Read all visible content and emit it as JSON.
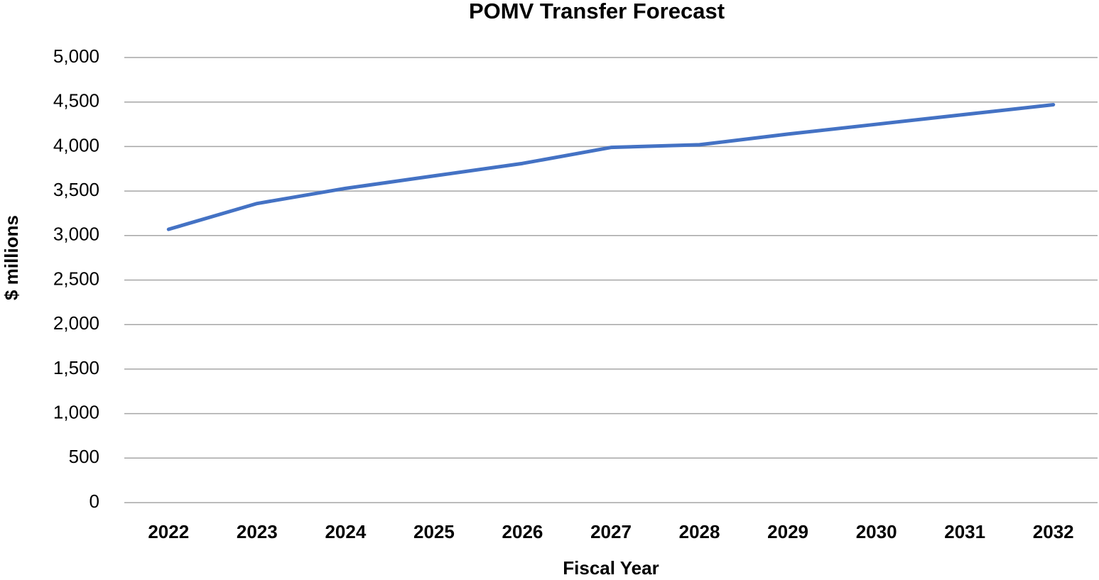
{
  "chart_data": {
    "type": "line",
    "title": "POMV Transfer Forecast",
    "x_label": "Fiscal Year",
    "y_label": "$ millions",
    "categories": [
      "2022",
      "2023",
      "2024",
      "2025",
      "2026",
      "2027",
      "2028",
      "2029",
      "2030",
      "2031",
      "2032"
    ],
    "values": [
      3070,
      3360,
      3530,
      3670,
      3810,
      3990,
      4020,
      4140,
      4250,
      4360,
      4470
    ],
    "color": "#4472c4",
    "ylim": [
      0,
      5000
    ],
    "yticks": [
      0,
      500,
      {
        "value": 1000,
        "label": "1,000"
      },
      {
        "value": 1500,
        "label": "1,500"
      },
      {
        "value": 2000,
        "label": "2,000"
      },
      {
        "value": 2500,
        "label": "2,500"
      },
      {
        "value": 3000,
        "label": "3,000"
      },
      {
        "value": 3500,
        "label": "3,500"
      },
      {
        "value": 4000,
        "label": "4,000"
      },
      {
        "value": 4500,
        "label": "4,500"
      },
      {
        "value": 5000,
        "label": "5,000"
      }
    ],
    "grid": true
  }
}
